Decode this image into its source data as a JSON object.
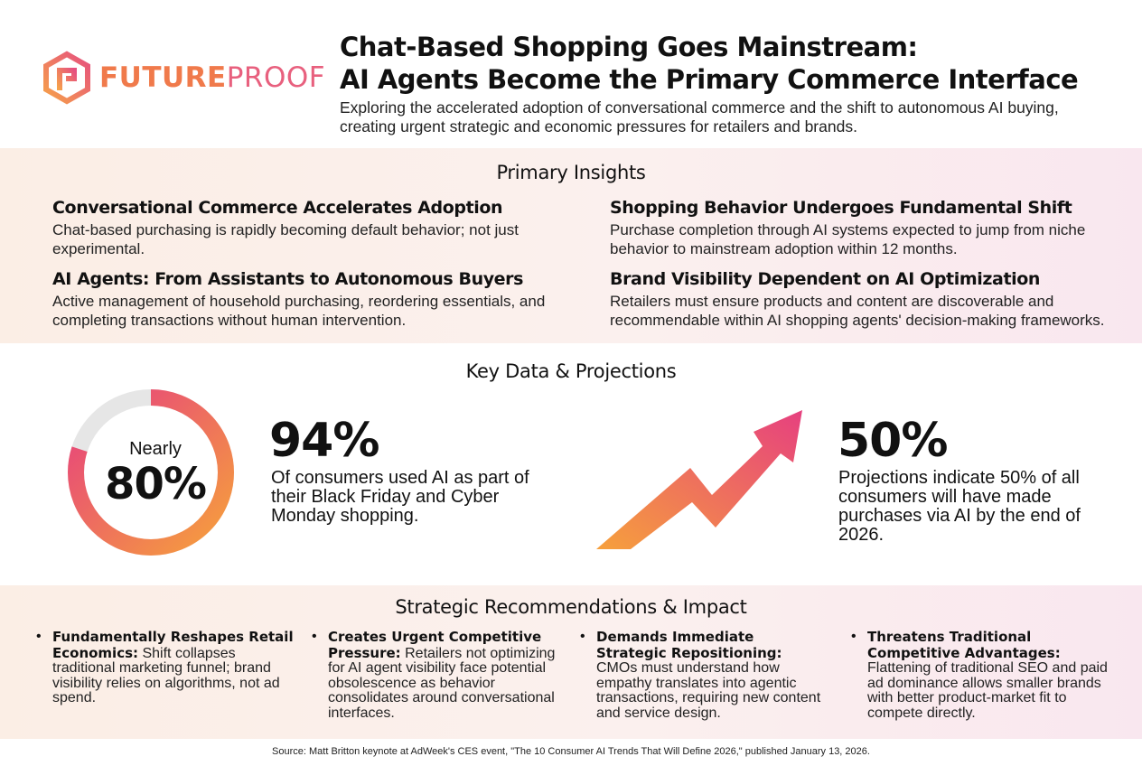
{
  "brand": {
    "logo_bold": "FUTURE",
    "logo_light": "PROOF"
  },
  "header": {
    "title_line1": "Chat-Based Shopping Goes Mainstream:",
    "title_line2": "AI Agents Become the Primary Commerce Interface",
    "subtitle": "Exploring the accelerated adoption of conversational commerce and the shift to autonomous AI buying, creating urgent strategic and economic pressures for retailers and brands."
  },
  "insights": {
    "heading": "Primary Insights",
    "items": [
      {
        "title": "Conversational Commerce Accelerates Adoption",
        "text": "Chat-based purchasing is rapidly becoming default behavior; not just experimental."
      },
      {
        "title": "Shopping Behavior Undergoes Fundamental Shift",
        "text": "Purchase completion through AI systems expected to jump from niche behavior to mainstream adoption within 12 months."
      },
      {
        "title": "AI Agents: From Assistants to Autonomous Buyers",
        "text": "Active management of household purchasing, reordering essentials, and completing transactions without human intervention."
      },
      {
        "title": "Brand Visibility Dependent on AI Optimization",
        "text": "Retailers must ensure products and content are discoverable and recommendable within AI shopping agents' decision-making frameworks."
      }
    ]
  },
  "data_section": {
    "heading": "Key Data & Projections",
    "donut": {
      "label": "Nearly",
      "value": "80%",
      "fraction": 0.8
    },
    "stat1": {
      "value": "94%",
      "text": "Of consumers used AI as part of their Black Friday and Cyber Monday shopping."
    },
    "stat2": {
      "value": "50%",
      "text": "Projections indicate 50% of all consumers will have made purchases via AI by the end of 2026."
    }
  },
  "recommendations": {
    "heading": "Strategic Recommendations & Impact",
    "items": [
      {
        "bold": "Fundamentally Reshapes Retail Economics:",
        "text": "Shift collapses traditional marketing funnel; brand visibility relies on algorithms, not ad spend."
      },
      {
        "bold": "Creates Urgent Competitive Pressure:",
        "text": "Retailers not optimizing for AI agent visibility face potential obsolescence as behavior consolidates around conversational interfaces."
      },
      {
        "bold": "Demands Immediate Strategic Repositioning:",
        "text": "CMOs must understand how empathy translates into agentic transactions, requiring new content and service design."
      },
      {
        "bold": "Threatens Traditional Competitive Advantages:",
        "text": "Flattening of traditional SEO and paid ad dominance allows smaller brands with better product-market fit to compete directly."
      }
    ]
  },
  "source": "Source: Matt Britton keynote at AdWeek's CES event, \"The 10 Consumer AI Trends That Will Define 2026,\" published January 13, 2026.",
  "colors": {
    "accent_orange": "#f5953c",
    "accent_pink": "#e8407e",
    "track_gray": "#e6e6e6"
  }
}
